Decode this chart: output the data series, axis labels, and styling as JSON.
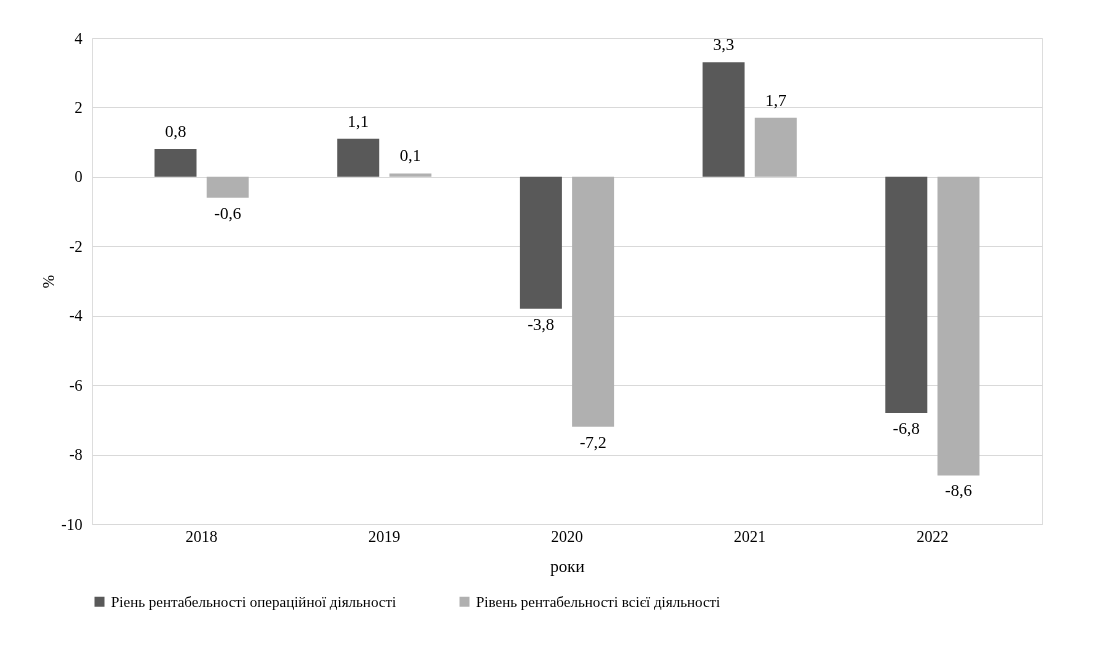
{
  "chart_data": {
    "type": "bar",
    "xlabel": "роки",
    "ylabel": "%",
    "categories": [
      "2018",
      "2019",
      "2020",
      "2021",
      "2022"
    ],
    "series": [
      {
        "name": "Ріень рентабельності операційної діяльності",
        "color": "#595959",
        "values": [
          0.8,
          1.1,
          -3.8,
          3.3,
          -6.8
        ],
        "value_labels": [
          "0,8",
          "1,1",
          "-3,8",
          "3,3",
          "-6,8"
        ]
      },
      {
        "name": "Рівень рентабельності всієї діяльності",
        "color": "#b0b0b0",
        "values": [
          -0.6,
          0.1,
          -7.2,
          1.7,
          -8.6
        ],
        "value_labels": [
          "-0,6",
          "0,1",
          "-7,2",
          "1,7",
          "-8,6"
        ]
      }
    ],
    "ylim": [
      -10,
      4
    ],
    "yticks": [
      -10,
      -8,
      -6,
      -4,
      -2,
      0,
      2,
      4
    ],
    "grid": "y",
    "legend": "bottom"
  }
}
